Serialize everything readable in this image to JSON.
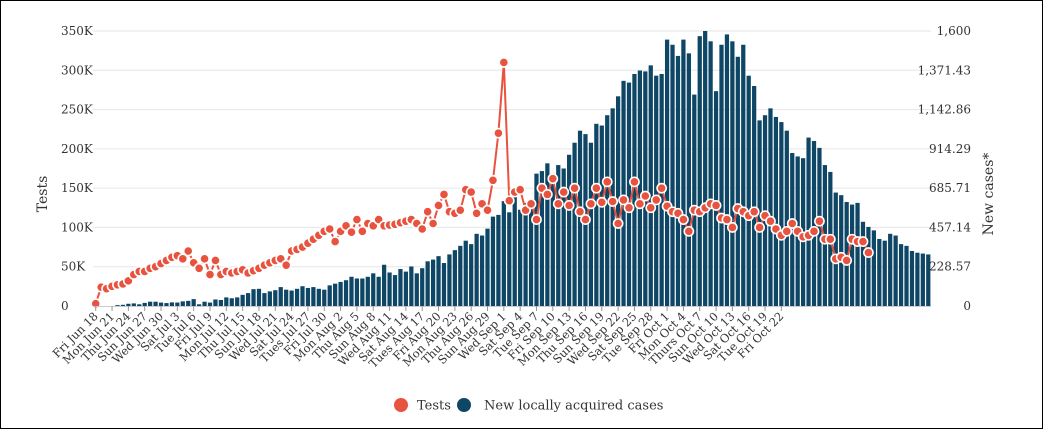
{
  "chart_data": {
    "type": "bar+line",
    "title": "",
    "left_axis": {
      "label": "Tests",
      "range": [
        0,
        350000
      ],
      "ticks": [
        0,
        50000,
        100000,
        150000,
        200000,
        250000,
        300000,
        350000
      ],
      "tick_labels": [
        "0",
        "50K",
        "100K",
        "150K",
        "200K",
        "250K",
        "300K",
        "350K"
      ]
    },
    "right_axis": {
      "label": "New cases*",
      "range": [
        0,
        1600
      ],
      "ticks": [
        0,
        228.57,
        457.14,
        685.71,
        914.29,
        1142.86,
        1371.43,
        1600
      ],
      "tick_labels": [
        "0",
        "228.57",
        "457.14",
        "685.71",
        "914.29",
        "1,142.86",
        "1,371.43",
        "1,600"
      ]
    },
    "x_tick_labels": [
      "Fri Jun 18",
      "Mon Jun 21",
      "Thu Jun 24",
      "Sun Jun 27",
      "Wed Jun 30",
      "Sat Jul 3",
      "Tue Jul 6",
      "Fri Jul 9",
      "Mon Jul 12",
      "Thu Jul 15",
      "Sun Jul 18",
      "Wed Jul 21",
      "Sat Jul 24",
      "Tues Jul 27",
      "Fri Jul 30",
      "Mon Aug 2",
      "Thu Aug 5",
      "Sun Aug 8",
      "Wed Aug 11",
      "Sat Aug 14",
      "Tues Aug 17",
      "Fri Aug 20",
      "Mon Aug 23",
      "Thu Aug 26",
      "Sun Aug 29",
      "Wed Sep 1",
      "Sat Sep 4",
      "Tue Sep 7",
      "Fri Sep 10",
      "Mon Sep 13",
      "Thu Sep 16",
      "Sun Sep 19",
      "Wed Sep 22",
      "Sat Sep 25",
      "Tue Sep 28",
      "Fri Oct 1",
      "Mon Oct 4",
      "Thurs Oct 7",
      "Sun Oct 10",
      "Wed Oct 13",
      "Sat Oct 16",
      "Tue Oct 19",
      "Fri Oct 22"
    ],
    "x_tick_step_days": 3,
    "series": [
      {
        "name": "Tests",
        "kind": "line",
        "axis": "left",
        "color": "#e8533f",
        "values": [
          3000,
          24000,
          22000,
          25000,
          27000,
          28000,
          32000,
          40000,
          44000,
          44000,
          48000,
          50000,
          54000,
          58000,
          62000,
          64000,
          60000,
          70000,
          55000,
          48000,
          60000,
          40000,
          58000,
          40000,
          44000,
          42000,
          44000,
          46000,
          42000,
          45000,
          48000,
          52000,
          55000,
          58000,
          60000,
          52000,
          70000,
          72000,
          75000,
          80000,
          85000,
          90000,
          95000,
          98000,
          82000,
          95000,
          102000,
          94000,
          110000,
          95000,
          105000,
          102000,
          110000,
          102000,
          103000,
          104000,
          106000,
          108000,
          110000,
          105000,
          98000,
          120000,
          105000,
          128000,
          142000,
          120000,
          118000,
          122000,
          148000,
          145000,
          118000,
          130000,
          122000,
          160000,
          220000,
          310000,
          134000,
          145000,
          148000,
          122000,
          130000,
          110000,
          150000,
          142000,
          162000,
          130000,
          145000,
          128000,
          150000,
          120000,
          110000,
          130000,
          150000,
          132000,
          158000,
          133000,
          105000,
          135000,
          125000,
          158000,
          130000,
          140000,
          125000,
          135000,
          150000,
          127000,
          120000,
          118000,
          110000,
          95000,
          122000,
          120000,
          125000,
          130000,
          128000,
          112000,
          110000,
          100000,
          124000,
          120000,
          115000,
          120000,
          100000,
          115000,
          108000,
          98000,
          90000,
          95000,
          105000,
          95000,
          88000,
          90000,
          95000,
          108000,
          85000,
          85000,
          60000,
          62000,
          58000,
          85000,
          82000,
          82000,
          68000
        ]
      },
      {
        "name": "New locally acquired cases",
        "kind": "bar",
        "axis": "right",
        "color": "#0e4666",
        "values": [
          0,
          0,
          0,
          0,
          5,
          7,
          13,
          15,
          10,
          18,
          25,
          25,
          20,
          17,
          21,
          20,
          27,
          30,
          40,
          10,
          25,
          20,
          38,
          35,
          50,
          45,
          50,
          65,
          75,
          98,
          100,
          75,
          85,
          92,
          110,
          95,
          90,
          100,
          115,
          105,
          110,
          100,
          95,
          120,
          130,
          140,
          150,
          170,
          160,
          160,
          170,
          190,
          170,
          240,
          195,
          180,
          215,
          200,
          230,
          190,
          220,
          260,
          270,
          290,
          250,
          300,
          325,
          350,
          380,
          360,
          420,
          410,
          450,
          520,
          530,
          610,
          545,
          640,
          560,
          600,
          580,
          770,
          785,
          830,
          770,
          820,
          800,
          880,
          950,
          1020,
          1000,
          950,
          1060,
          1050,
          1110,
          1150,
          1220,
          1310,
          1300,
          1350,
          1370,
          1365,
          1400,
          1340,
          1350,
          1550,
          1520,
          1455,
          1550,
          1470,
          1230,
          1570,
          1600,
          1540,
          1250,
          1520,
          1580,
          1540,
          1450,
          1520,
          1340,
          1280,
          1080,
          1110,
          1150,
          1100,
          1070,
          1020,
          890,
          870,
          860,
          980,
          960,
          920,
          820,
          780,
          660,
          645,
          605,
          590,
          600,
          490,
          460,
          440,
          390,
          380,
          420,
          410,
          360,
          350,
          320,
          310,
          305,
          300
        ]
      }
    ],
    "legend": [
      {
        "label": "Tests",
        "color": "#e8533f"
      },
      {
        "label": "New locally acquired cases",
        "color": "#0e4666"
      }
    ],
    "legend_position": "bottom-center",
    "grid": "horizontal"
  }
}
